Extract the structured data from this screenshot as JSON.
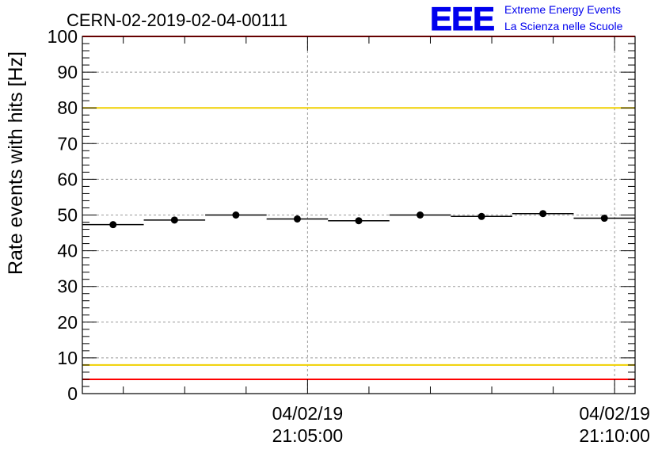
{
  "chart_data": {
    "type": "scatter",
    "title": "CERN-02-2019-02-04-00111",
    "ylabel": "Rate events with hits [Hz]",
    "xlabel": "",
    "ylim": [
      0,
      100
    ],
    "yticks": [
      0,
      10,
      20,
      30,
      40,
      50,
      60,
      70,
      80,
      90,
      100
    ],
    "xlim": [
      "04/02/19 21:01:20",
      "04/02/19 21:10:20"
    ],
    "xticks": [
      {
        "date": "04/02/19",
        "time": "21:05:00"
      },
      {
        "date": "04/02/19",
        "time": "21:10:00"
      }
    ],
    "grid": true,
    "series": [
      {
        "x": [
          "21:01:50",
          "21:02:50",
          "21:03:50",
          "21:04:50",
          "21:05:50",
          "21:06:50",
          "21:07:50",
          "21:08:50",
          "21:09:50"
        ],
        "values": [
          47.3,
          48.6,
          50.0,
          48.9,
          48.4,
          50.0,
          49.6,
          50.4,
          49.1
        ],
        "bin_width_seconds": 60
      }
    ],
    "reference_lines": [
      {
        "y": 100,
        "color": "#ff0000"
      },
      {
        "y": 80,
        "color": "#f0d000"
      },
      {
        "y": 8,
        "color": "#f0d000"
      },
      {
        "y": 4,
        "color": "#ff0000"
      }
    ]
  },
  "logo": {
    "mark": "EEE",
    "line1": "Extreme Energy Events",
    "line2": "La Scienza nelle Scuole",
    "color": "#0000ee"
  },
  "colors": {
    "axis": "#000000",
    "grid": "#999999",
    "marker": "#000000"
  }
}
